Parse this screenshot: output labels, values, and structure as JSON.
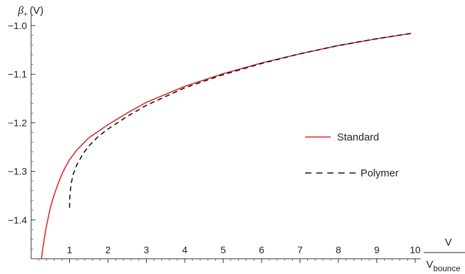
{
  "chart_data": {
    "type": "line",
    "ylabel_symbol": "β",
    "ylabel_sub": "+",
    "ylabel_unit": "(V)",
    "xlabel_num": "V",
    "xlabel_den_main": "V",
    "xlabel_den_sub": "bounce",
    "xlim": [
      0,
      10
    ],
    "ylim": [
      -1.48,
      -0.99
    ],
    "x_ticks": [
      1,
      2,
      3,
      4,
      5,
      6,
      7,
      8,
      9,
      10
    ],
    "x_tick_labels": [
      "1",
      "2",
      "3",
      "4",
      "5",
      "6",
      "7",
      "8",
      "9",
      "10"
    ],
    "y_ticks": [
      -1.0,
      -1.1,
      -1.2,
      -1.3,
      -1.4
    ],
    "y_tick_labels": [
      "-1.0",
      "-1.1",
      "-1.2",
      "-1.3",
      "-1.4"
    ],
    "legend_position": "right",
    "series": [
      {
        "name": "Standard",
        "color": "#e0232a",
        "dash": "solid",
        "x": [
          0.27,
          0.3,
          0.35,
          0.4,
          0.5,
          0.6,
          0.7,
          0.8,
          0.9,
          1.0,
          1.2,
          1.5,
          2.0,
          2.5,
          3.0,
          4.0,
          5.0,
          6.0,
          7.0,
          8.0,
          9.0,
          9.9
        ],
        "y": [
          -1.48,
          -1.46,
          -1.435,
          -1.412,
          -1.375,
          -1.348,
          -1.326,
          -1.306,
          -1.29,
          -1.276,
          -1.255,
          -1.231,
          -1.204,
          -1.18,
          -1.158,
          -1.125,
          -1.099,
          -1.077,
          -1.058,
          -1.041,
          -1.027,
          -1.016
        ]
      },
      {
        "name": "Polymer",
        "color": "#111111",
        "dash": "dashed",
        "x": [
          1.0,
          1.005,
          1.02,
          1.05,
          1.1,
          1.2,
          1.35,
          1.5,
          1.75,
          2.0,
          2.5,
          3.0,
          4.0,
          5.0,
          6.0,
          7.0,
          8.0,
          9.0,
          9.9
        ],
        "y": [
          -1.375,
          -1.355,
          -1.34,
          -1.322,
          -1.305,
          -1.285,
          -1.264,
          -1.248,
          -1.228,
          -1.213,
          -1.187,
          -1.164,
          -1.128,
          -1.101,
          -1.078,
          -1.058,
          -1.041,
          -1.027,
          -1.016
        ]
      }
    ]
  }
}
